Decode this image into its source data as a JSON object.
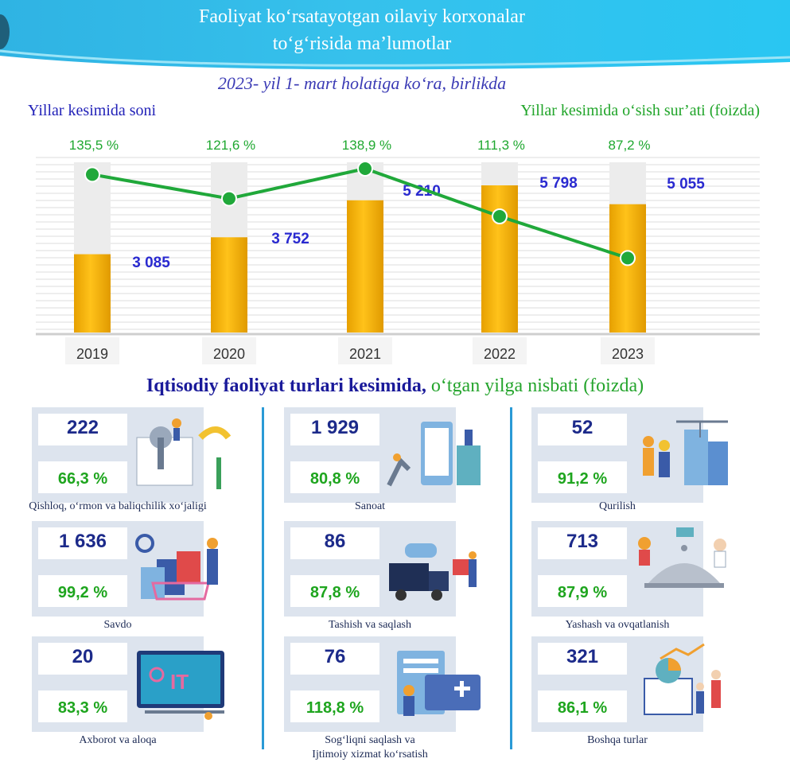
{
  "header": {
    "title_line1": "Faoliyat ko‘rsatayotgan oilaviy korxonalar",
    "title_line2": "to‘g‘risida ma’lumotlar",
    "subtitle": "2023- yil 1- mart holatiga ko‘ra, birlikda"
  },
  "chart_data": {
    "type": "bar",
    "categories": [
      "2019",
      "2020",
      "2021",
      "2022",
      "2023"
    ],
    "series": [
      {
        "name": "Yillar kesimida soni",
        "values": [
          3085,
          3752,
          5210,
          5798,
          5055
        ],
        "labels": [
          "3 085",
          "3 752",
          "5 210",
          "5 798",
          "5 055"
        ],
        "color": "#f5b800"
      },
      {
        "name": "Yillar kesimida o‘sish sur’ati (foizda)",
        "values": [
          135.5,
          121.6,
          138.9,
          111.3,
          87.2
        ],
        "labels": [
          "135,5 %",
          "121,6 %",
          "138,9 %",
          "111,3 %",
          "87,2 %"
        ],
        "color": "#20a83a"
      }
    ],
    "left_label": "Yillar kesimida soni",
    "right_label": "Yillar kesimida o‘sish sur’ati (foizda)"
  },
  "section": {
    "title_bold": "Iqtisodiy faoliyat turlari kesimida,",
    "title_rest": " o‘tgan yilga nisbati (foizda)"
  },
  "sectors": [
    {
      "count": "222",
      "pct": "66,3 %",
      "label": "Qishloq, o‘rmon va baliqchilik xo‘jaligi",
      "icon": "agriculture-illustration"
    },
    {
      "count": "1 929",
      "pct": "80,8 %",
      "label": "Sanoat",
      "icon": "industry-illustration"
    },
    {
      "count": "52",
      "pct": "91,2 %",
      "label": "Qurilish",
      "icon": "construction-illustration"
    },
    {
      "count": "1 636",
      "pct": "99,2 %",
      "label": "Savdo",
      "icon": "trade-illustration"
    },
    {
      "count": "86",
      "pct": "87,8 %",
      "label": "Tashish va saqlash",
      "icon": "transport-illustration"
    },
    {
      "count": "713",
      "pct": "87,9 %",
      "label": "Yashash va ovqatlanish",
      "icon": "hospitality-illustration"
    },
    {
      "count": "20",
      "pct": "83,3 %",
      "label": "Axborot va aloqa",
      "icon": "it-illustration"
    },
    {
      "count": "76",
      "pct": "118,8 %",
      "label": "Sog‘liqni saqlash va",
      "label2": "Ijtimoiy xizmat ko‘rsatish",
      "icon": "healthcare-illustration"
    },
    {
      "count": "321",
      "pct": "86,1 %",
      "label": "Boshqa turlar",
      "icon": "analytics-illustration"
    }
  ],
  "colors": {
    "bar": "#f5b800",
    "line": "#20a83a",
    "count_text": "#2a2ad0",
    "banner": "#32bde9"
  }
}
